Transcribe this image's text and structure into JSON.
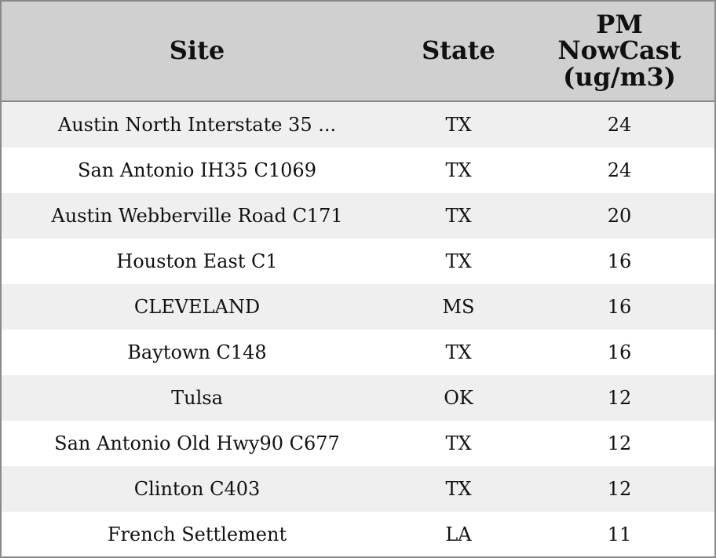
{
  "table": {
    "columns": [
      "Site",
      "State",
      "PM NowCast (ug/m3)"
    ],
    "rows": [
      [
        "Austin North Interstate 35 ...",
        "TX",
        24
      ],
      [
        "San Antonio IH35 C1069",
        "TX",
        24
      ],
      [
        "Austin Webberville Road C171",
        "TX",
        20
      ],
      [
        "Houston East C1",
        "TX",
        16
      ],
      [
        "CLEVELAND",
        "MS",
        16
      ],
      [
        "Baytown C148",
        "TX",
        16
      ],
      [
        "Tulsa",
        "OK",
        12
      ],
      [
        "San Antonio Old Hwy90 C677",
        "TX",
        12
      ],
      [
        "Clinton C403",
        "TX",
        12
      ],
      [
        "French Settlement",
        "LA",
        11
      ]
    ]
  }
}
